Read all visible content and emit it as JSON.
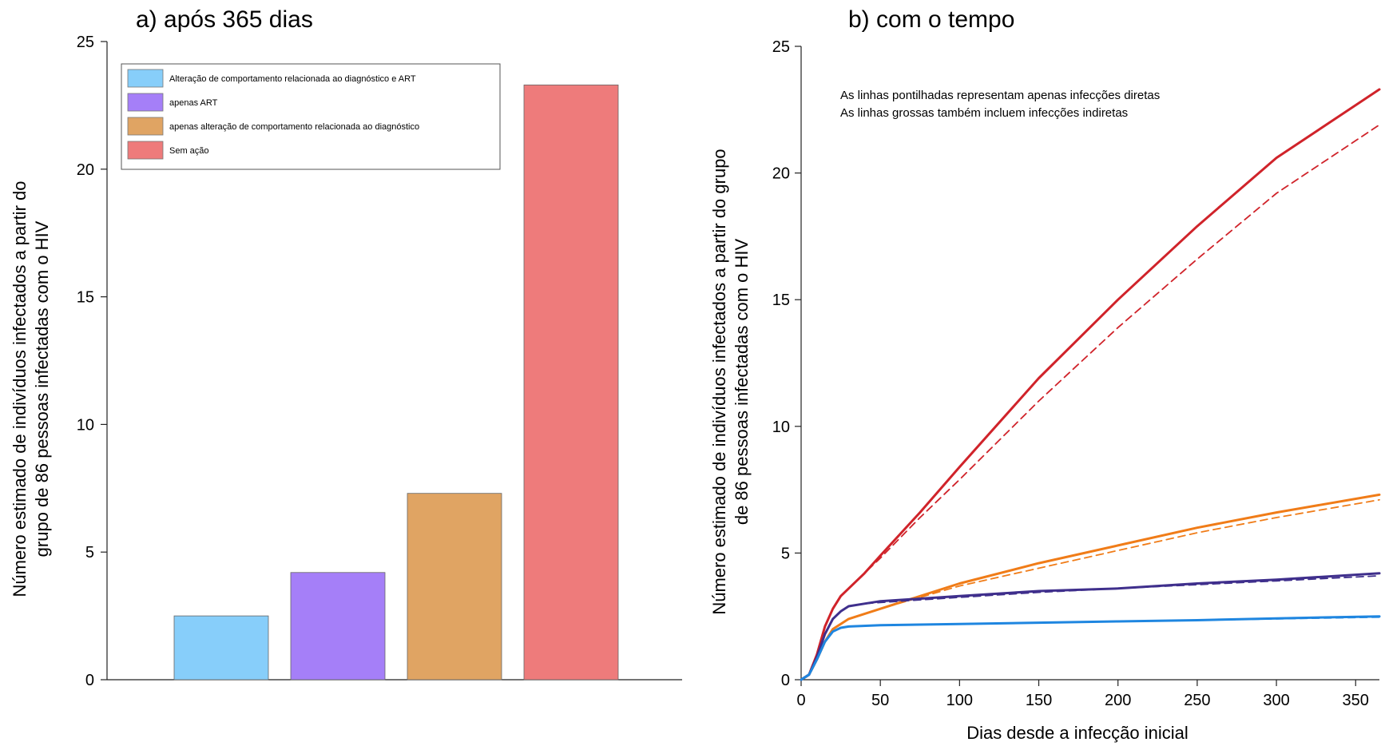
{
  "chart_data": [
    {
      "type": "bar",
      "title": "a) após 365 dias",
      "ylabel": "Número estimado de indivíduos infectados a partir do grupo de 86 pessoas infectadas com o HIV",
      "ylabel_lines": [
        "Número estimado de indivíduos infectados a partir do",
        "grupo de 86 pessoas infectadas com o HIV"
      ],
      "xlabel": "",
      "ylim": [
        0,
        25
      ],
      "yticks": [
        0,
        5,
        10,
        15,
        20,
        25
      ],
      "categories": [
        "Alteração de comportamento relacionada ao diagnóstico e ART",
        "apenas ART",
        "apenas alteração de comportamento relacionada ao diagnóstico",
        "Sem ação"
      ],
      "values": [
        2.5,
        4.2,
        7.3,
        23.3
      ],
      "colors": [
        "#87cefa",
        "#a57ff8",
        "#e0a463",
        "#ee7b7b"
      ],
      "legend": {
        "position": "top-left",
        "entries": [
          "Alteração de comportamento relacionada ao diagnóstico e ART",
          "apenas ART",
          "apenas alteração de comportamento relacionada ao diagnóstico",
          "Sem ação"
        ]
      },
      "grid": false
    },
    {
      "type": "line",
      "title": "b) com o tempo",
      "xlabel": "Dias desde a infecção inicial",
      "ylabel": "Número estimado de indivíduos infectados a partir do grupo de 86 pessoas infectadas com o HIV",
      "ylabel_lines": [
        "Número estimado de indivíduos infectados a partir do grupo",
        "de 86 pessoas infectadas com o HIV"
      ],
      "xlim": [
        0,
        365
      ],
      "ylim": [
        0,
        25
      ],
      "xticks": [
        0,
        50,
        100,
        150,
        200,
        250,
        300,
        350
      ],
      "yticks": [
        0,
        5,
        10,
        15,
        20,
        25
      ],
      "annotations": [
        "As linhas pontilhadas representam apenas infecções diretas",
        "As linhas grossas também incluem infecções indiretas"
      ],
      "grid": false,
      "series": [
        {
          "color": "#d0232a",
          "style": "solid",
          "x": [
            0,
            5,
            10,
            15,
            20,
            25,
            30,
            40,
            50,
            75,
            100,
            150,
            200,
            250,
            300,
            365
          ],
          "y": [
            0,
            0.2,
            1.0,
            2.1,
            2.8,
            3.3,
            3.6,
            4.2,
            4.9,
            6.6,
            8.4,
            11.9,
            15.0,
            17.9,
            20.6,
            23.3
          ]
        },
        {
          "color": "#d0232a",
          "style": "dashed",
          "x": [
            0,
            5,
            10,
            15,
            20,
            25,
            30,
            40,
            50,
            75,
            100,
            150,
            200,
            250,
            300,
            365
          ],
          "y": [
            0,
            0.2,
            1.0,
            2.1,
            2.8,
            3.3,
            3.6,
            4.2,
            4.8,
            6.4,
            7.9,
            11.0,
            13.9,
            16.6,
            19.2,
            21.9
          ]
        },
        {
          "color": "#f07c18",
          "style": "solid",
          "x": [
            0,
            5,
            10,
            15,
            20,
            25,
            30,
            50,
            100,
            150,
            200,
            250,
            300,
            365
          ],
          "y": [
            0,
            0.2,
            0.8,
            1.5,
            2.0,
            2.2,
            2.4,
            2.8,
            3.8,
            4.6,
            5.3,
            6.0,
            6.6,
            7.3
          ]
        },
        {
          "color": "#f07c18",
          "style": "dashed",
          "x": [
            0,
            5,
            10,
            15,
            20,
            25,
            30,
            50,
            100,
            150,
            200,
            250,
            300,
            365
          ],
          "y": [
            0,
            0.2,
            0.8,
            1.5,
            2.0,
            2.2,
            2.4,
            2.8,
            3.7,
            4.4,
            5.1,
            5.8,
            6.4,
            7.1
          ]
        },
        {
          "color": "#3f2f8c",
          "style": "solid",
          "x": [
            0,
            5,
            10,
            15,
            20,
            25,
            30,
            40,
            50,
            100,
            150,
            200,
            250,
            300,
            365
          ],
          "y": [
            0,
            0.2,
            0.9,
            1.8,
            2.4,
            2.7,
            2.9,
            3.0,
            3.1,
            3.3,
            3.5,
            3.6,
            3.8,
            3.95,
            4.2
          ]
        },
        {
          "color": "#3f2f8c",
          "style": "dashed",
          "x": [
            0,
            5,
            10,
            15,
            20,
            25,
            30,
            40,
            50,
            100,
            150,
            200,
            250,
            300,
            365
          ],
          "y": [
            0,
            0.2,
            0.9,
            1.8,
            2.4,
            2.7,
            2.9,
            3.0,
            3.05,
            3.25,
            3.45,
            3.6,
            3.75,
            3.9,
            4.1
          ]
        },
        {
          "color": "#1f86e0",
          "style": "solid",
          "x": [
            0,
            5,
            10,
            15,
            20,
            25,
            30,
            50,
            100,
            150,
            200,
            250,
            300,
            365
          ],
          "y": [
            0,
            0.2,
            0.8,
            1.5,
            1.9,
            2.05,
            2.1,
            2.15,
            2.2,
            2.25,
            2.3,
            2.35,
            2.42,
            2.5
          ]
        },
        {
          "color": "#1f86e0",
          "style": "dashed",
          "x": [
            0,
            5,
            10,
            15,
            20,
            25,
            30,
            50,
            100,
            150,
            200,
            250,
            300,
            365
          ],
          "y": [
            0,
            0.2,
            0.8,
            1.5,
            1.9,
            2.05,
            2.1,
            2.15,
            2.2,
            2.25,
            2.3,
            2.35,
            2.4,
            2.47
          ]
        }
      ]
    }
  ]
}
